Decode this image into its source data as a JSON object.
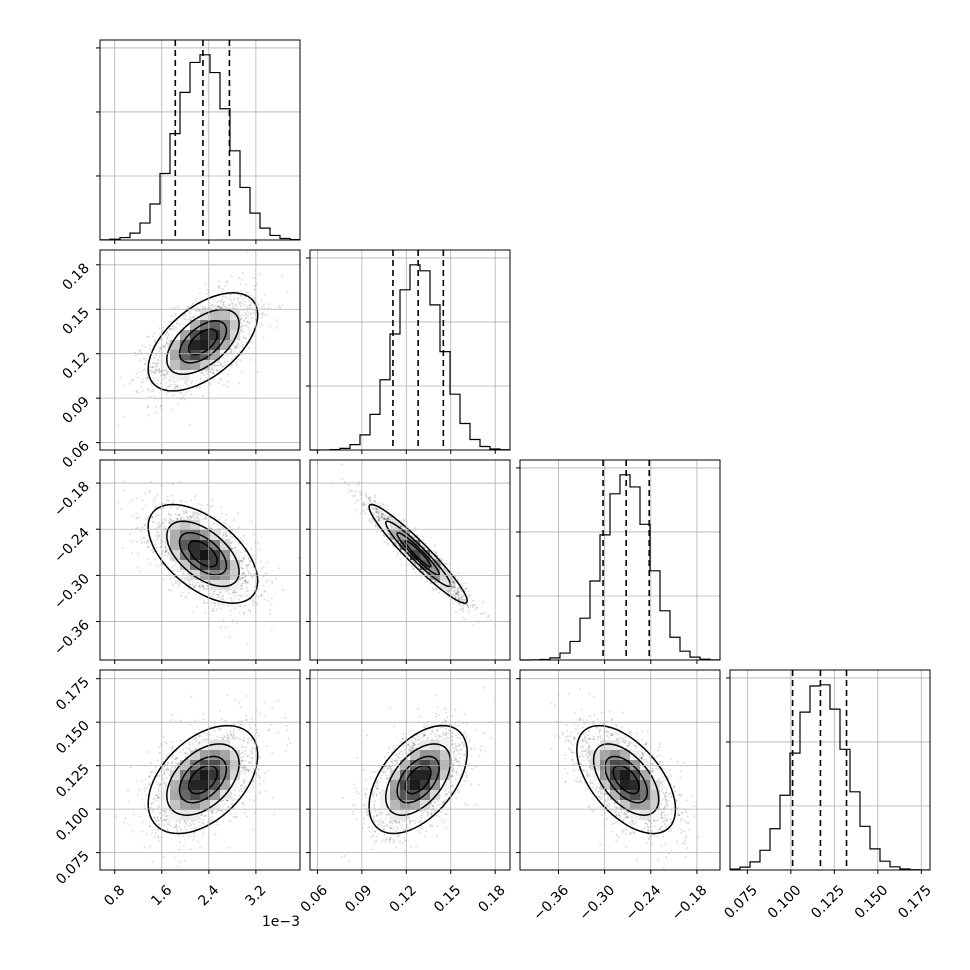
{
  "chart_data": {
    "type": "corner",
    "grid": true,
    "parameters": [
      {
        "range": [
          0.55,
          3.95
        ],
        "ticks": [
          0.8,
          1.6,
          2.4,
          3.2
        ],
        "tick_labels": [
          "0.8",
          "1.6",
          "2.4",
          "3.2"
        ],
        "offset_label": "1e−3",
        "mean": 2.3,
        "sd": 0.45,
        "quantiles": [
          1.83,
          2.3,
          2.75
        ]
      },
      {
        "range": [
          0.055,
          0.19
        ],
        "ticks": [
          0.06,
          0.09,
          0.12,
          0.15,
          0.18
        ],
        "tick_labels": [
          "0.06",
          "0.09",
          "0.12",
          "0.15",
          "0.18"
        ],
        "mean": 0.128,
        "sd": 0.016,
        "quantiles": [
          0.111,
          0.128,
          0.145
        ]
      },
      {
        "range": [
          -0.41,
          -0.15
        ],
        "ticks": [
          -0.36,
          -0.3,
          -0.24,
          -0.18
        ],
        "tick_labels": [
          "−0.36",
          "−0.30",
          "−0.24",
          "−0.18"
        ],
        "mean": -0.272,
        "sd": 0.031,
        "quantiles": [
          -0.302,
          -0.272,
          -0.242
        ]
      },
      {
        "range": [
          0.065,
          0.18
        ],
        "ticks": [
          0.075,
          0.1,
          0.125,
          0.15,
          0.175
        ],
        "tick_labels": [
          "0.075",
          "0.100",
          "0.125",
          "0.150",
          "0.175"
        ],
        "mean": 0.117,
        "sd": 0.015,
        "quantiles": [
          0.101,
          0.117,
          0.132
        ]
      }
    ],
    "correlations": [
      {
        "row": 1,
        "col": 0,
        "rho": 0.55
      },
      {
        "row": 2,
        "col": 0,
        "rho": -0.55
      },
      {
        "row": 2,
        "col": 1,
        "rho": -0.95
      },
      {
        "row": 3,
        "col": 0,
        "rho": 0.45
      },
      {
        "row": 3,
        "col": 1,
        "rho": 0.5
      },
      {
        "row": 3,
        "col": 2,
        "rho": -0.55
      }
    ],
    "contour_levels_sigma": [
      0.5,
      1.0,
      1.5,
      2.0
    ]
  }
}
